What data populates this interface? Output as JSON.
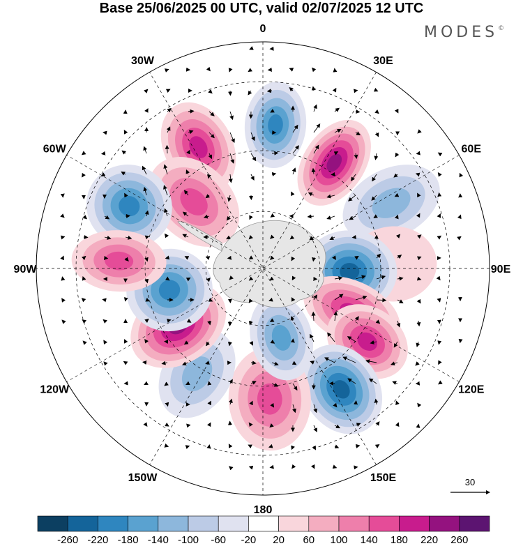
{
  "title": "Base 25/06/2025 00 UTC, valid 02/07/2025 12 UTC",
  "brand": "MODES",
  "brand_mark": "©",
  "map": {
    "projection": "south-polar-stereographic",
    "longitude_labels": [
      "0",
      "30E",
      "60E",
      "90E",
      "120E",
      "150E",
      "180",
      "150W",
      "120W",
      "90W",
      "60W",
      "30W"
    ],
    "reference_vector_label": "30",
    "features": [
      "shaded-anomaly-field",
      "wind-vectors",
      "dashed-lat-lon-grid",
      "coastlines"
    ],
    "colors": {
      "land": "#e6e6e6",
      "grid": "#000000"
    }
  },
  "colorbar": {
    "levels": [
      "-260",
      "-220",
      "-180",
      "-140",
      "-100",
      "-60",
      "-20",
      "20",
      "60",
      "100",
      "140",
      "180",
      "220",
      "260"
    ],
    "colors": [
      "#0c3f61",
      "#14649a",
      "#2f86bf",
      "#5aa2d0",
      "#8db7dc",
      "#bccbe6",
      "#e0e2f0",
      "#ffffff",
      "#f9d6dc",
      "#f4adc0",
      "#ee7fab",
      "#e54c98",
      "#c81c8d",
      "#94127f",
      "#5c1471"
    ]
  },
  "anomaly_centres": [
    {
      "lon": 5,
      "lat": -42,
      "value": -200
    },
    {
      "lon": -28,
      "lat": -44,
      "value": 190
    },
    {
      "lon": -46,
      "lat": -57,
      "value": 150
    },
    {
      "lon": -65,
      "lat": -41,
      "value": -180
    },
    {
      "lon": 34,
      "lat": -47,
      "value": 230
    },
    {
      "lon": 63,
      "lat": -42,
      "value": -110
    },
    {
      "lon": 88,
      "lat": -46,
      "value": 50
    },
    {
      "lon": 92,
      "lat": -60,
      "value": -220
    },
    {
      "lon": 116,
      "lat": -56,
      "value": 200
    },
    {
      "lon": 125,
      "lat": -47,
      "value": 180
    },
    {
      "lon": 147,
      "lat": -42,
      "value": -240
    },
    {
      "lon": 177,
      "lat": -46,
      "value": 160
    },
    {
      "lon": 165,
      "lat": -65,
      "value": -150
    },
    {
      "lon": -148,
      "lat": -48,
      "value": -120
    },
    {
      "lon": -124,
      "lat": -55,
      "value": 240
    },
    {
      "lon": -103,
      "lat": -57,
      "value": -180
    },
    {
      "lon": -87,
      "lat": -42,
      "value": 140
    }
  ]
}
